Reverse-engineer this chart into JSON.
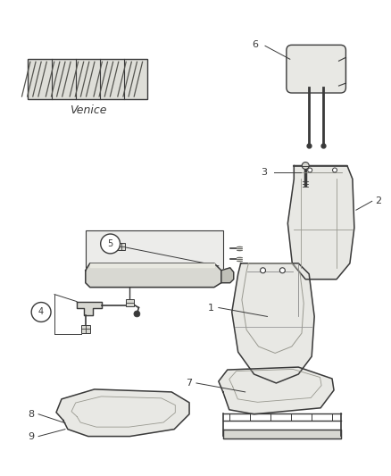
{
  "background_color": "#ffffff",
  "fabric_label": "Venice",
  "line_color": "#3a3a3a",
  "fill_light": "#e8e8e4",
  "fill_medium": "#d8d8d2",
  "fill_dark": "#c0c0b8",
  "fill_rail": "#b0b0a8"
}
